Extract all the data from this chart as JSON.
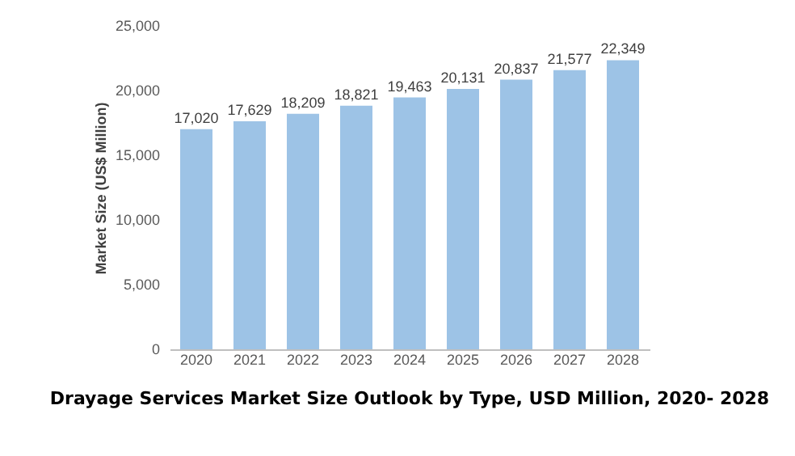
{
  "chart_data": {
    "type": "bar",
    "title": "Drayage Services Market Size Outlook by Type, USD Million, 2020- 2028",
    "ylabel": "Market Size (US$ Million)",
    "categories": [
      "2020",
      "2021",
      "2022",
      "2023",
      "2024",
      "2025",
      "2026",
      "2027",
      "2028"
    ],
    "values": [
      17020,
      17629,
      18209,
      18821,
      19463,
      20131,
      20837,
      21577,
      22349
    ],
    "value_labels": [
      "17,020",
      "17,629",
      "18,209",
      "18,821",
      "19,463",
      "20,131",
      "20,837",
      "21,577",
      "22,349"
    ],
    "color": "#9dc3e6",
    "ylim": [
      0,
      25000
    ],
    "grid": false,
    "yticks": [
      0,
      {
        "value": 5000,
        "label": "5,000"
      },
      {
        "value": 10000,
        "label": "10,000"
      },
      {
        "value": 15000,
        "label": "15,000"
      },
      {
        "value": 20000,
        "label": "20,000"
      },
      {
        "value": 25000,
        "label": "25,000"
      }
    ]
  }
}
